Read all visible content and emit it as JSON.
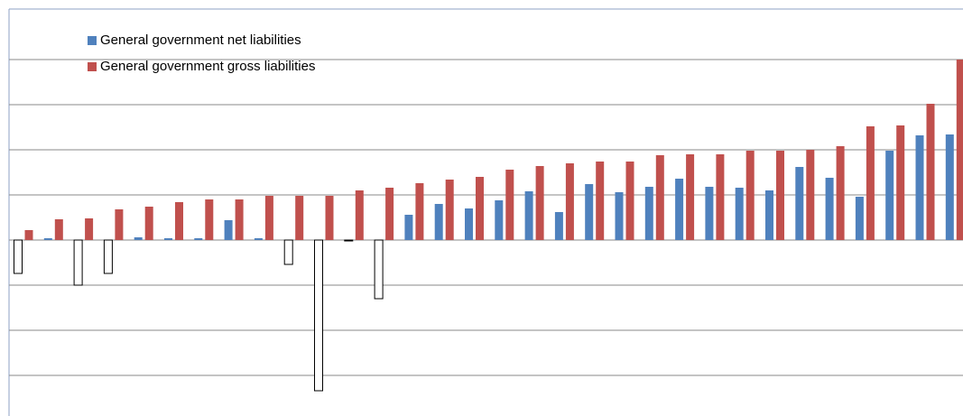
{
  "chart_data": {
    "type": "bar",
    "categories": [
      null,
      null,
      null,
      null,
      null,
      null,
      null,
      null,
      null,
      null,
      null,
      null,
      null,
      null,
      null,
      null,
      null,
      null,
      null,
      null,
      null,
      null,
      null,
      null,
      null,
      null,
      null,
      null,
      null,
      null,
      null,
      null
    ],
    "series": [
      {
        "name": "General government net liabilities",
        "color": "#4f81bd",
        "negative_fill": "#ffffff",
        "values": [
          -37,
          2,
          -50,
          -37,
          3,
          2,
          2,
          22,
          2,
          -27,
          -167,
          -1,
          -65,
          28,
          40,
          35,
          44,
          54,
          31,
          62,
          53,
          59,
          68,
          59,
          58,
          55,
          81,
          69,
          48,
          99,
          116,
          117
        ]
      },
      {
        "name": "General government gross liabilities",
        "color": "#c0504d",
        "values": [
          11,
          23,
          24,
          34,
          37,
          42,
          45,
          45,
          49,
          49,
          49,
          55,
          58,
          63,
          67,
          70,
          78,
          82,
          85,
          87,
          87,
          94,
          95,
          95,
          99,
          99,
          100,
          104,
          126,
          127,
          151,
          200
        ]
      }
    ],
    "ylim": [
      -195,
      266
    ],
    "yticks": [
      -150,
      -100,
      -50,
      0,
      50,
      100,
      150,
      200
    ],
    "grid": true
  }
}
